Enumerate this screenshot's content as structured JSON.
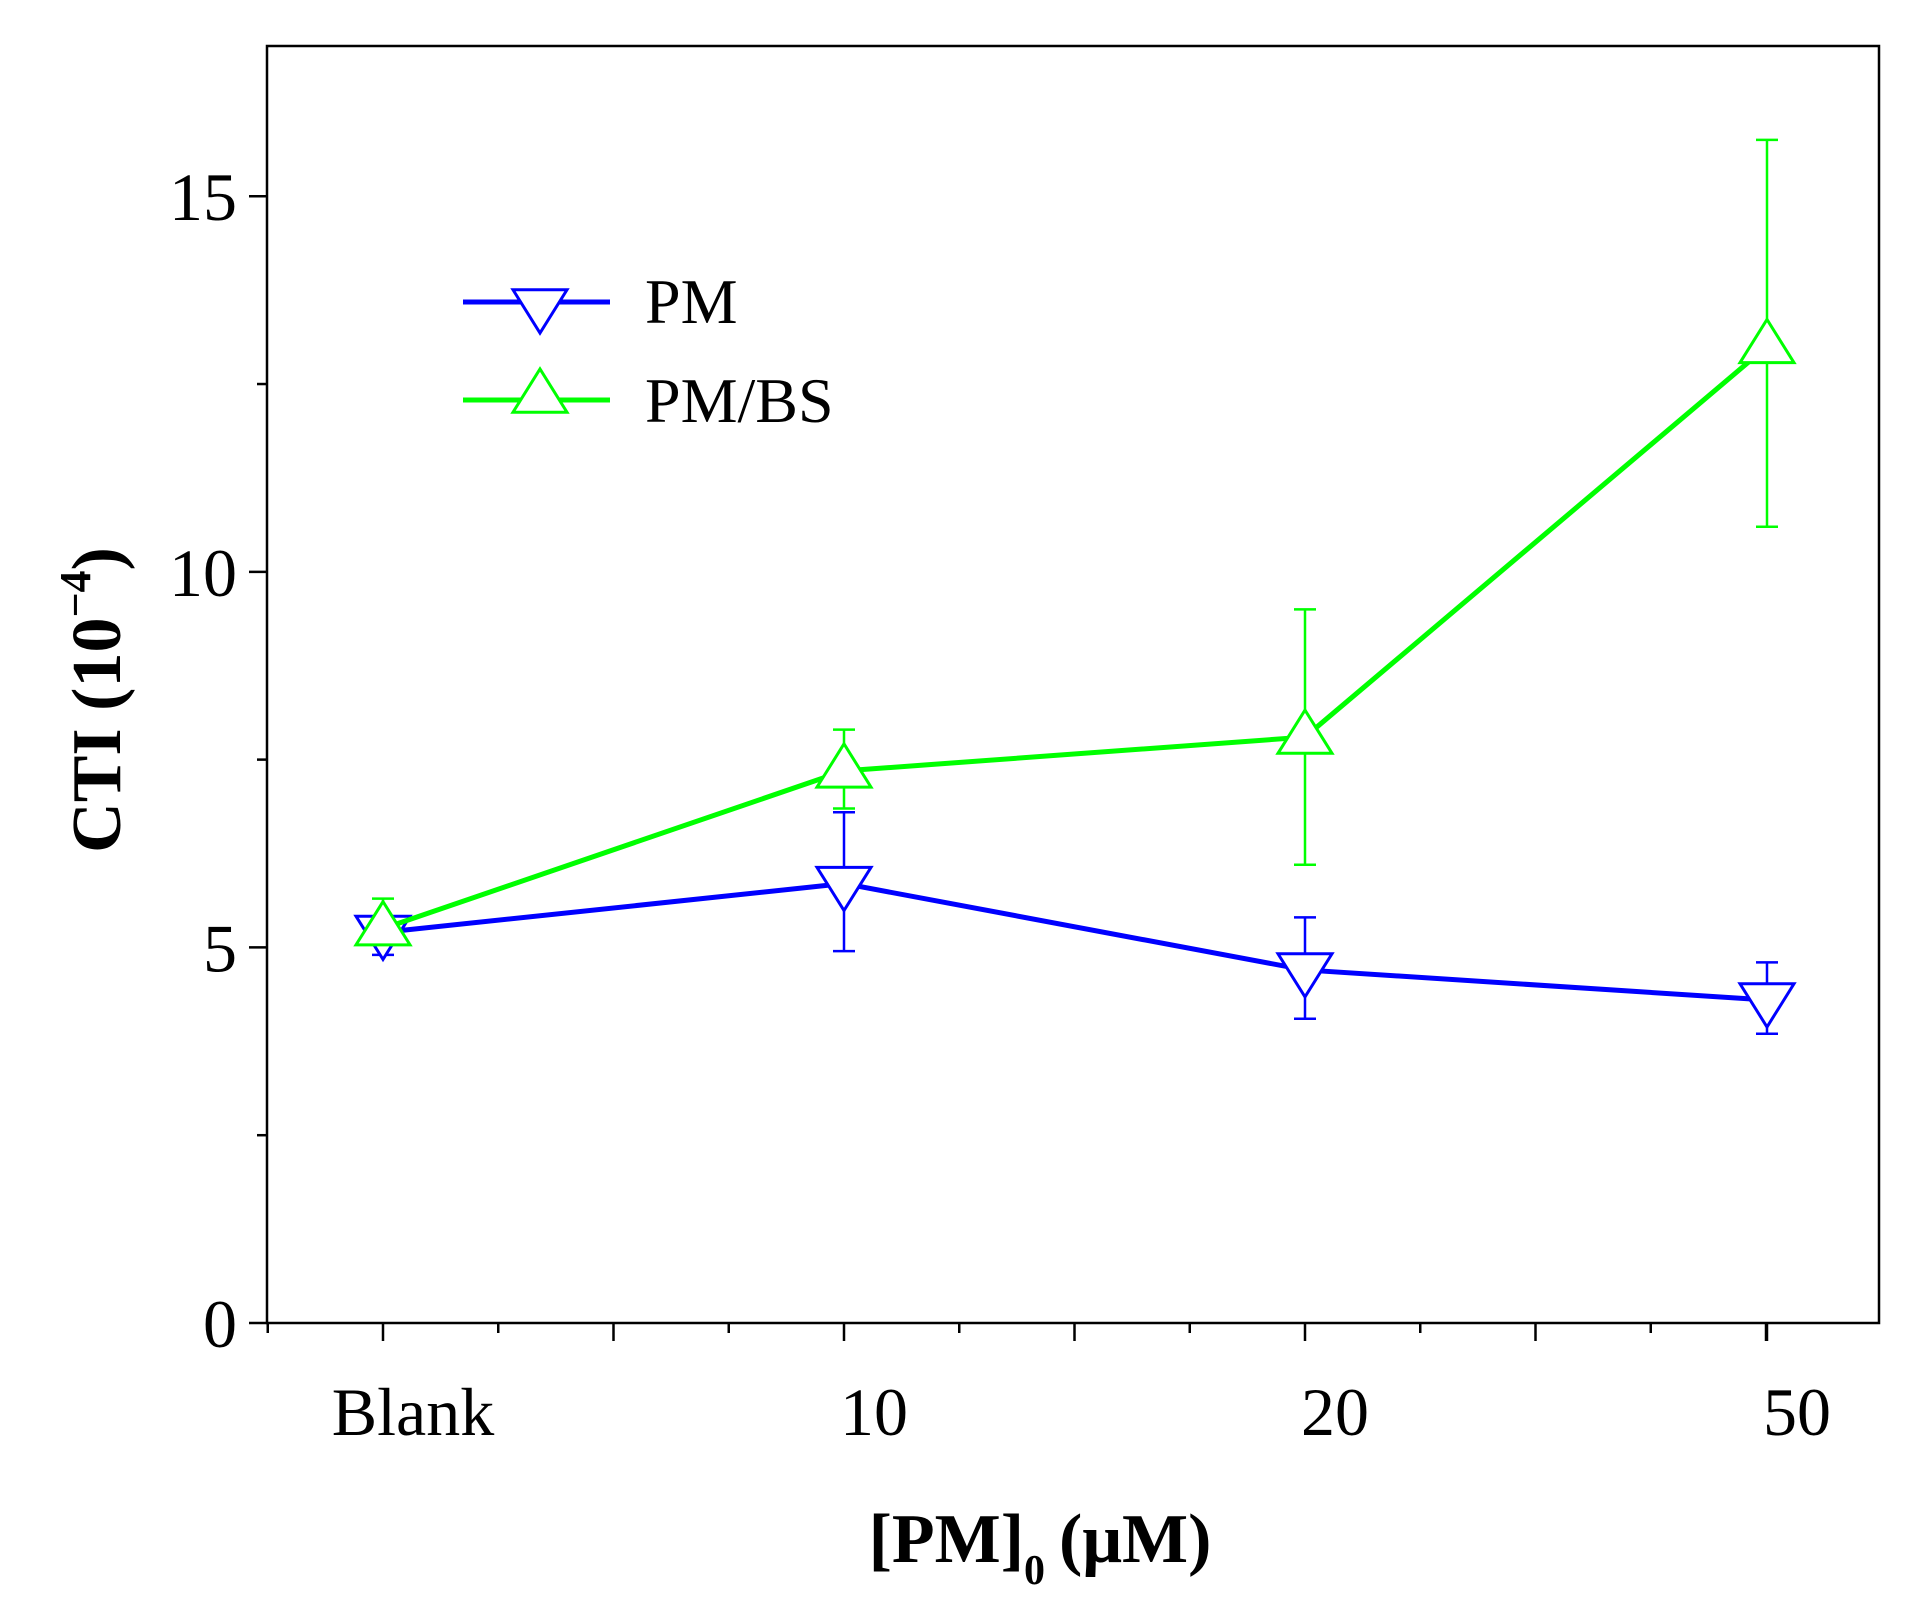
{
  "chart_data": {
    "type": "line",
    "title": "",
    "xlabel": "[PM]",
    "xlabel_subscript": "0",
    "xlabel_unit": "(μM)",
    "ylabel": "CTI (10",
    "ylabel_superscript": "−4",
    "ylabel_close": ")",
    "categories": [
      "Blank",
      "10",
      "20",
      "50"
    ],
    "ylim": [
      0,
      17
    ],
    "yticks": [
      0,
      5,
      10,
      15
    ],
    "ytick_labels": [
      "0",
      "5",
      "10",
      "15"
    ],
    "legend_position": "top-left",
    "series": [
      {
        "name": "PM",
        "color": "#0000ff",
        "marker": "triangle-down",
        "values": [
          5.2,
          5.85,
          4.7,
          4.3
        ],
        "err_upper": [
          0.05,
          0.95,
          0.7,
          0.5
        ],
        "err_lower": [
          0.3,
          0.9,
          0.65,
          0.45
        ]
      },
      {
        "name": "PM/BS",
        "color": "#00ff00",
        "marker": "triangle-up",
        "values": [
          5.25,
          7.35,
          7.8,
          13.0
        ],
        "err_upper": [
          0.4,
          0.55,
          1.7,
          2.75
        ],
        "err_lower": [
          0.1,
          0.5,
          1.7,
          2.4
        ]
      }
    ]
  }
}
